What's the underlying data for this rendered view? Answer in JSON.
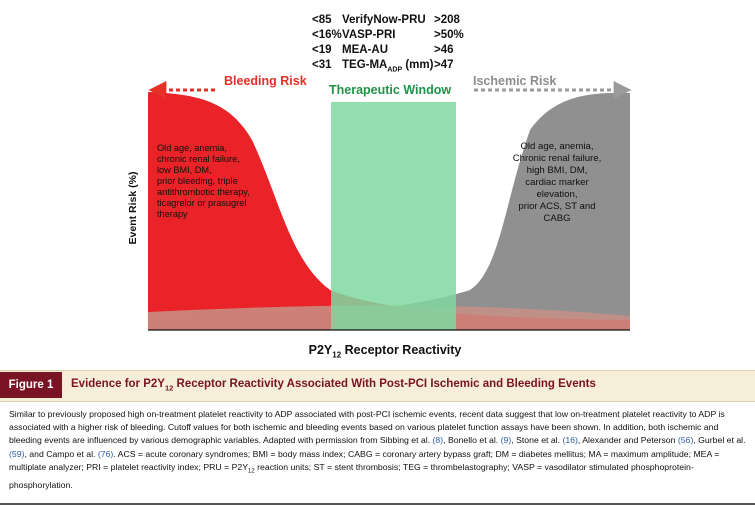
{
  "thresholds": [
    {
      "low": "<85",
      "name": "VerifyNow-PRU",
      "sub": "",
      "suffix": "",
      "high": ">208"
    },
    {
      "low": "<16%",
      "name": "VASP-PRI",
      "sub": "",
      "suffix": "",
      "high": ">50%"
    },
    {
      "low": "<19",
      "name": "MEA-AU",
      "sub": "",
      "suffix": "",
      "high": ">46"
    },
    {
      "low": "<31",
      "name": "TEG-MA",
      "sub": "ADP",
      "suffix": " (mm)",
      "high": ">47"
    }
  ],
  "labels": {
    "bleeding_risk": "Bleeding Risk",
    "ischemic_risk": "Ischemic Risk",
    "therapeutic_window": "Therapeutic Window"
  },
  "bleeding_factors": "Old age, anemia,\nchronic renal failure,\nlow BMI, DM,\nprior bleeding, triple\nantithrombotic therapy,\nticagrelor or prasugrel\ntherapy",
  "ischemic_factors": "Old age, anemia,\nChronic renal failure,\nhigh BMI, DM,\ncardiac marker\nelevation,\nprior ACS, ST and\nCABG",
  "axes": {
    "y_label": "Event Risk (%)",
    "x_label_pre": "P2Y",
    "x_label_sub": "12",
    "x_label_post": " Receptor Reactivity"
  },
  "figure": {
    "tag": "Figure 1",
    "title_pre": "Evidence for P2Y",
    "title_sub": "12",
    "title_post": " Receptor Reactivity Associated With Post-PCI Ischemic and Bleeding Events"
  },
  "caption": [
    {
      "t": "Similar to previously proposed high on-treatment platelet reactivity to ADP associated with post-PCI ischemic events, recent data suggest that low on-treatment platelet reactivity to ADP is associated with a higher risk of bleeding. Cutoff values for both ischemic and bleeding events based on various platelet function assays have been shown. In addition, both ischemic and bleeding events are influenced by various demographic variables. Adapted with permission from Sibbing et al. ",
      "ref": false
    },
    {
      "t": "(8)",
      "ref": true
    },
    {
      "t": ", Bonello et al. ",
      "ref": false
    },
    {
      "t": "(9)",
      "ref": true
    },
    {
      "t": ", Stone et al. ",
      "ref": false
    },
    {
      "t": "(16)",
      "ref": true
    },
    {
      "t": ", Alexander and Peterson ",
      "ref": false
    },
    {
      "t": "(56)",
      "ref": true
    },
    {
      "t": ", Gurbel et al. ",
      "ref": false
    },
    {
      "t": "(59)",
      "ref": true
    },
    {
      "t": ", and Campo et al. ",
      "ref": false
    },
    {
      "t": "(76)",
      "ref": true
    },
    {
      "t": ". ACS = acute coronary syndromes; BMI = body mass index; CABG = coronary artery bypass graft; DM = diabetes mellitus; MA = maximum amplitude; MEA = multiplate analyzer; PRI = platelet reactivity index; PRU = P2Y",
      "ref": false
    },
    {
      "t": "12",
      "ref": false,
      "sub": true
    },
    {
      "t": " reaction units; ST = stent thrombosis; TEG = thrombelastography; VASP = vasodilator stimulated phosphoprotein-phosphorylation.",
      "ref": false
    }
  ],
  "colors": {
    "bleeding": "#e8171b",
    "ischemic": "#828282",
    "window": "#7fd8a0",
    "figure_tag_bg": "#7a1424"
  }
}
